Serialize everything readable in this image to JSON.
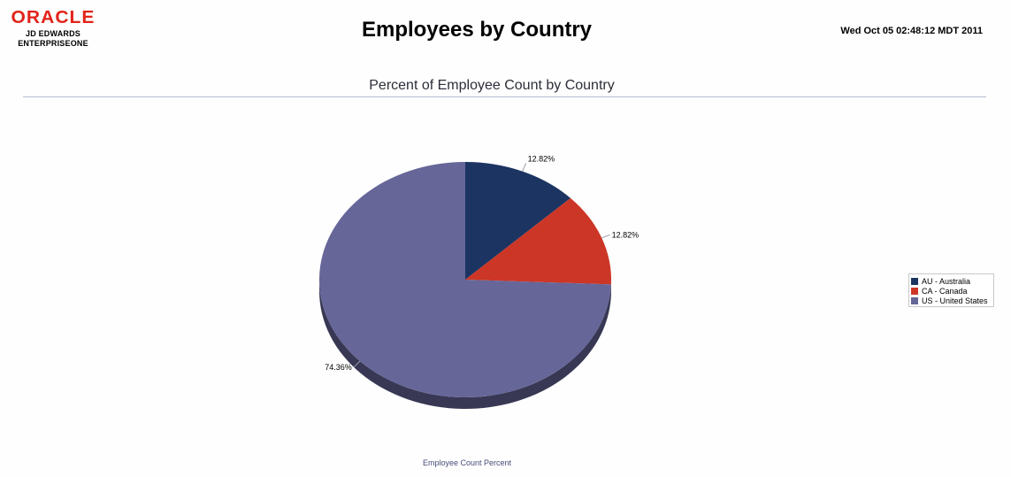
{
  "logo": {
    "brand": "ORACLE",
    "line1": "JD EDWARDS",
    "line2": "ENTERPRISEONE"
  },
  "header": {
    "title": "Employees by Country",
    "timestamp": "Wed Oct 05 02:48:12 MDT 2011"
  },
  "chart_data": {
    "type": "pie",
    "title": "Percent of Employee Count by Country",
    "xlabel": "Employee Count Percent",
    "categories": [
      "AU - Australia",
      "CA - Canada",
      "US - United States"
    ],
    "values": [
      12.82,
      12.82,
      74.36
    ],
    "data_labels": [
      "12.82%",
      "12.82%",
      "74.36%"
    ],
    "colors": [
      "#1c3461",
      "#cc3626",
      "#666699"
    ],
    "legend_position": "right"
  }
}
